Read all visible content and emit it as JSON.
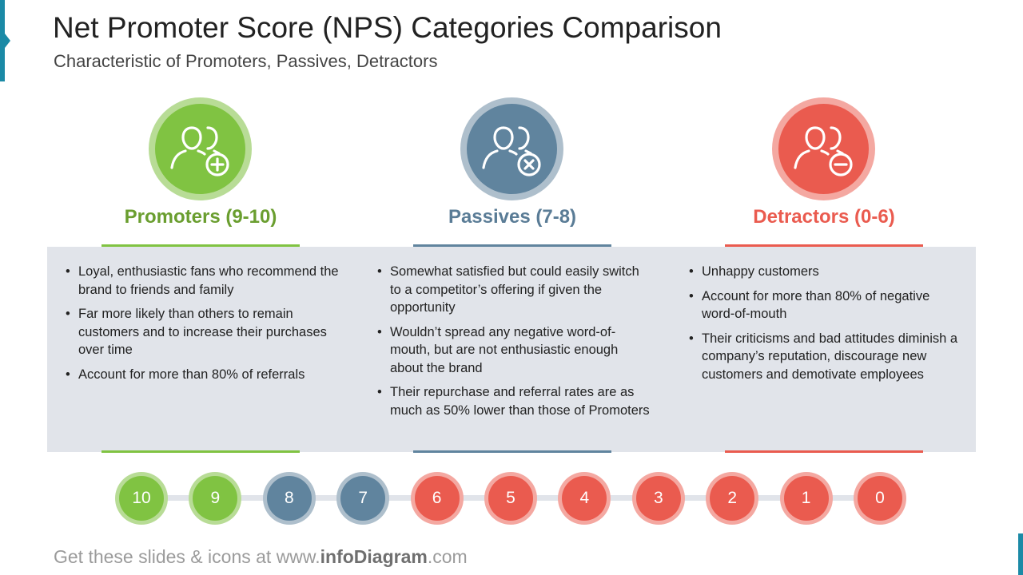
{
  "header": {
    "title": "Net Promoter Score (NPS) Categories Comparison",
    "subtitle": "Characteristic of Promoters, Passives, Detractors"
  },
  "colors": {
    "accent": "#1b8aa6",
    "promoters": "#80c342",
    "promoters_ring": "#b8dc96",
    "promoters_text": "#6a9e2f",
    "passives": "#60849e",
    "passives_ring": "#aebfcc",
    "passives_text": "#5a7c96",
    "detractors": "#ea5b4f",
    "detractors_ring": "#f4a8a1",
    "band": "#e1e4ea"
  },
  "categories": [
    {
      "key": "promoters",
      "icon": "users-plus-icon",
      "heading": "Promoters (9-10)",
      "bullets": [
        "Loyal, enthusiastic fans who recommend the brand to friends and family",
        "Far more likely than others to remain customers and to increase their purchases over time",
        "Account for more than 80% of referrals"
      ]
    },
    {
      "key": "passives",
      "icon": "users-x-icon",
      "heading": "Passives (7-8)",
      "bullets": [
        "Somewhat satisfied but could easily switch to a competitor’s offering if given the opportunity",
        "Wouldn’t spread any negative word-of-mouth, but are not enthusiastic enough about the brand",
        "Their repurchase and referral rates are as much as 50% lower than those of Promoters"
      ]
    },
    {
      "key": "detractors",
      "icon": "users-minus-icon",
      "heading": "Detractors (0-6)",
      "bullets": [
        "Unhappy customers",
        "Account for more than 80% of negative word-of-mouth",
        "Their criticisms and bad attitudes diminish a company’s reputation, discourage new customers and demotivate employees"
      ]
    }
  ],
  "scale": [
    {
      "label": "10",
      "category": "promoters"
    },
    {
      "label": "9",
      "category": "promoters"
    },
    {
      "label": "8",
      "category": "passives"
    },
    {
      "label": "7",
      "category": "passives"
    },
    {
      "label": "6",
      "category": "detractors"
    },
    {
      "label": "5",
      "category": "detractors"
    },
    {
      "label": "4",
      "category": "detractors"
    },
    {
      "label": "3",
      "category": "detractors"
    },
    {
      "label": "2",
      "category": "detractors"
    },
    {
      "label": "1",
      "category": "detractors"
    },
    {
      "label": "0",
      "category": "detractors"
    }
  ],
  "footer": {
    "prefix": "Get these slides & icons at www.",
    "brand": "infoDiagram",
    "suffix": ".com"
  }
}
